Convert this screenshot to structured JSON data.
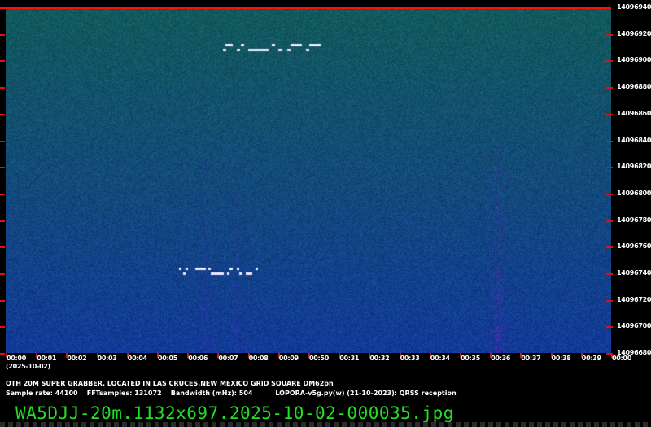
{
  "chart_data": {
    "type": "heatmap",
    "title": "",
    "x_ticks": [
      "00:00",
      "00:01",
      "00:02",
      "00:03",
      "00:04",
      "00:05",
      "00:06",
      "00:07",
      "00:08",
      "00:09",
      "00:50",
      "00:31",
      "00:32",
      "00:33",
      "00:34",
      "00:35",
      "00:36",
      "00:37",
      "00:38",
      "00:39",
      "00:00"
    ],
    "x_date_label": "(2025-10-02)",
    "y_ticks": [
      "14096940",
      "14096920",
      "14096900",
      "14096880",
      "14096860",
      "14096840",
      "14096820",
      "14096800",
      "14096780",
      "14096760",
      "14096740",
      "14096720",
      "14096700",
      "14096680"
    ],
    "ylim": [
      14096680,
      14096940
    ],
    "colormap": {
      "top": "#155a5c",
      "bottom": "#1a4a9e",
      "signal": "#f0e8ff",
      "axis_marks": "#e01010"
    },
    "signals": [
      {
        "kind": "FSK QRSS text",
        "frequency_hz": 14096910,
        "time_range": [
          "00:07",
          "00:10"
        ]
      },
      {
        "kind": "FSK QRSS text",
        "frequency_hz": 14096740,
        "time_range": [
          "00:06",
          "00:08"
        ]
      }
    ]
  },
  "info": {
    "line1": "QTH 20M SUPER GRABBER, LOCATED IN LAS CRUCES,NEW MEXICO GRID SQUARE DM62ph",
    "line2": "Sample rate: 44100    FFTsamples: 131072    Bandwidth (mHz): 504          LOPORA-v5g.py(w) (21-10-2023): QRSS reception"
  },
  "filename": "WA5DJJ-20m.1132x697.2025-10-02-000035.jpg"
}
